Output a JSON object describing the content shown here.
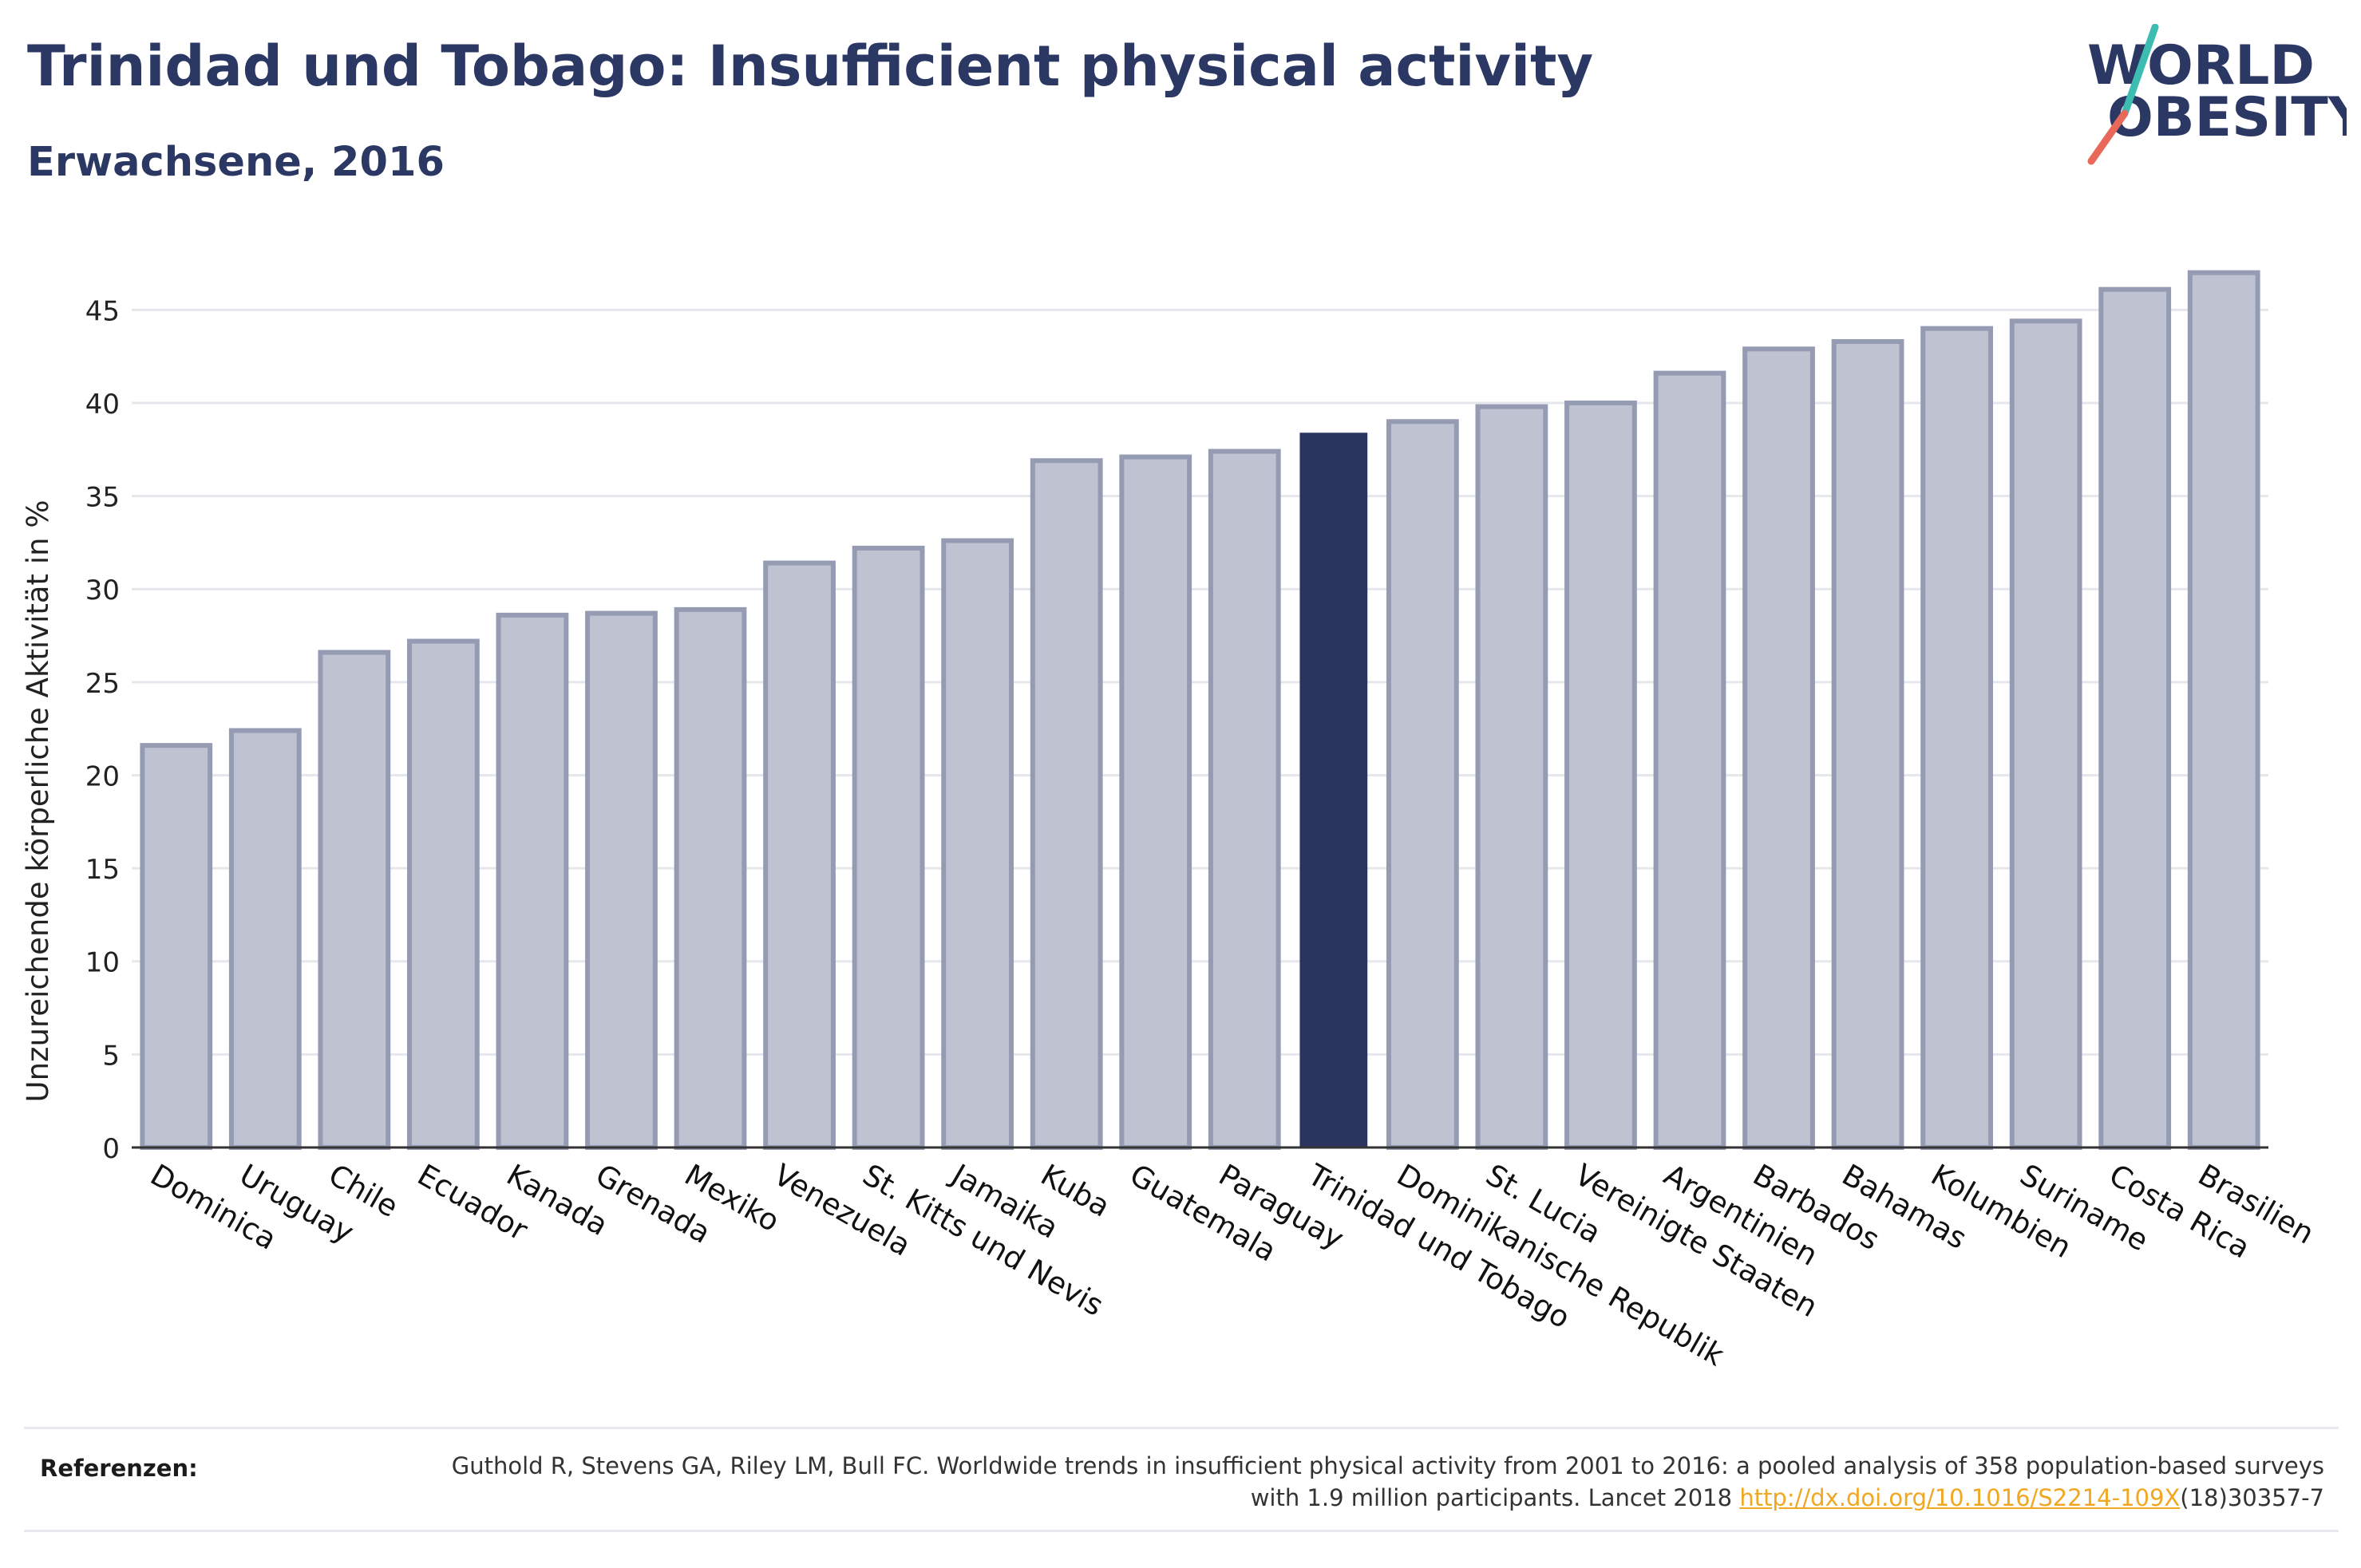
{
  "header": {
    "title": "Trinidad und Tobago: Insufficient physical activity",
    "subtitle": "Erwachsene, 2016"
  },
  "logo": {
    "line1": "WORLD",
    "line2": "OBESITY",
    "accent_teal": "#3dbdb1",
    "accent_red": "#e8685a",
    "text_color": "#2c3864"
  },
  "chart_data": {
    "type": "bar",
    "title": "",
    "xlabel": "",
    "ylabel": "Unzureichende körperliche Aktivität in %",
    "ylim": [
      0,
      47.5
    ],
    "yticks": [
      0,
      5,
      10,
      15,
      20,
      25,
      30,
      35,
      40,
      45
    ],
    "grid": true,
    "categories": [
      "Dominica",
      "Uruguay",
      "Chile",
      "Ecuador",
      "Kanada",
      "Grenada",
      "Mexiko",
      "Venezuela",
      "St. Kitts und Nevis",
      "Jamaika",
      "Kuba",
      "Guatemala",
      "Paraguay",
      "Trinidad und Tobago",
      "Dominikanische Republik",
      "St. Lucia",
      "Vereinigte Staaten",
      "Argentinien",
      "Barbados",
      "Bahamas",
      "Kolumbien",
      "Suriname",
      "Costa Rica",
      "Brasilien"
    ],
    "values": [
      21.6,
      22.4,
      26.6,
      27.2,
      28.6,
      28.7,
      28.9,
      31.4,
      32.2,
      32.6,
      36.9,
      37.1,
      37.4,
      38.4,
      39.0,
      39.8,
      40.0,
      41.6,
      42.9,
      43.3,
      44.0,
      44.4,
      46.1,
      47.0
    ],
    "highlight": "Trinidad und Tobago",
    "colors": {
      "bar": "#bfc2d0",
      "bar_border": "#959bb3",
      "highlight": "#2a355f",
      "grid": "#e6e7ec",
      "axis": "#333333"
    }
  },
  "references": {
    "label": "Referenzen:",
    "text_before": "Guthold R, Stevens GA, Riley LM, Bull FC. Worldwide trends in insufficient physical activity from 2001 to 2016: a pooled analysis of 358 population-based surveys with 1.9 million participants. Lancet 2018 ",
    "link_text": "http://dx.doi.org/10.1016/S2214-109X",
    "text_after": "(18)30357-7"
  }
}
